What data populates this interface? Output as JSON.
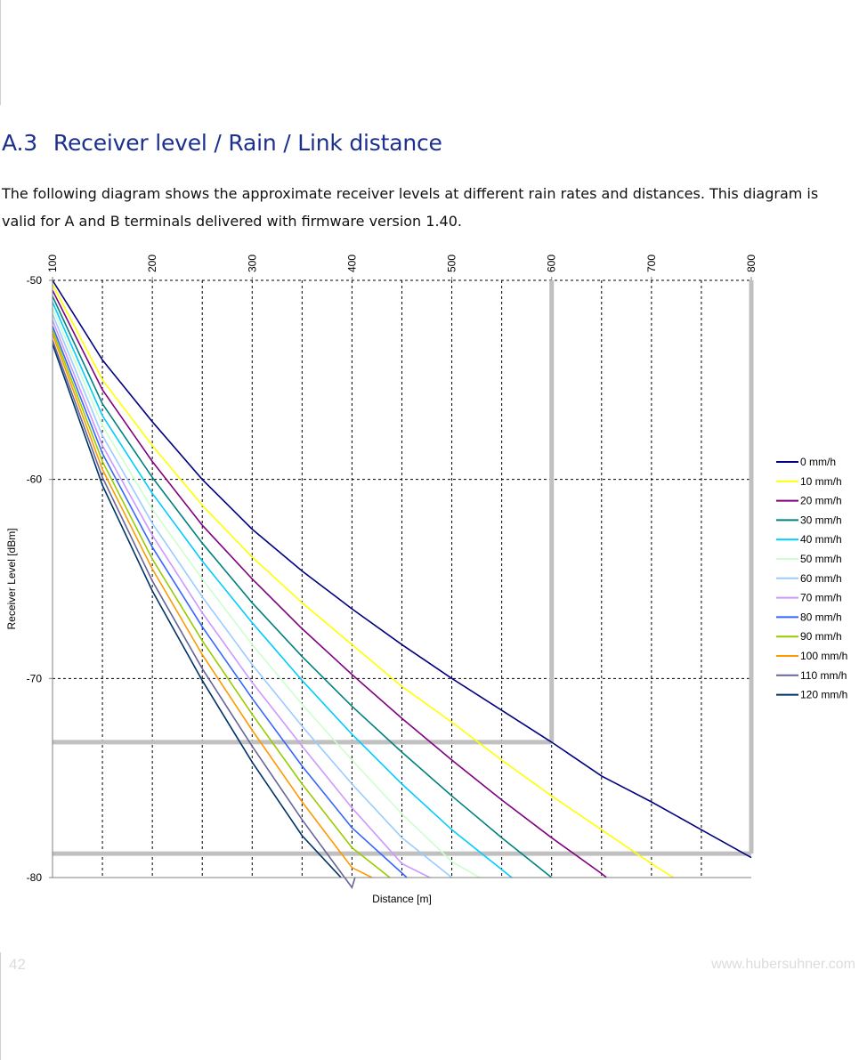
{
  "section": {
    "number": "A.3",
    "title": "Receiver level / Rain / Link distance",
    "intro": "The following diagram shows the approximate receiver levels at different rain rates and distances. This diagram is valid for A and B terminals delivered with firmware version 1.40."
  },
  "footer": {
    "page_number": "42",
    "website": "www.hubersuhner.com"
  },
  "chart_data": {
    "type": "line",
    "title": "",
    "xlabel": "Distance [m]",
    "ylabel": "Receiver Level [dBm]",
    "xlim": [
      100,
      800
    ],
    "ylim": [
      -80,
      -50
    ],
    "x_ticks": [
      {
        "value": 100,
        "label": "100"
      },
      {
        "value": 200,
        "label": "200"
      },
      {
        "value": 300,
        "label": "300"
      },
      {
        "value": 400,
        "label": "400"
      },
      {
        "value": 500,
        "label": "500"
      },
      {
        "value": 600,
        "label": "600"
      },
      {
        "value": 700,
        "label": "700"
      },
      {
        "value": 800,
        "label": "800"
      }
    ],
    "y_ticks": [
      {
        "value": -50,
        "label": "-50"
      },
      {
        "value": -60,
        "label": "-60"
      },
      {
        "value": -70,
        "label": "-70"
      },
      {
        "value": -80,
        "label": "-80"
      }
    ],
    "x_axis_position": "top",
    "grid": "dashed vertical every 50 m, dashed horizontal at each y tick",
    "legend_position": "right",
    "series": [
      {
        "name": "0 mm/h",
        "color": "#000080",
        "x": [
          100,
          150,
          200,
          250,
          300,
          350,
          400,
          450,
          500,
          550,
          600,
          650,
          700,
          750,
          800
        ],
        "y": [
          -50,
          -54,
          -57.1,
          -60,
          -62.5,
          -64.6,
          -66.5,
          -68.3,
          -70,
          -71.6,
          -73.2,
          -74.9,
          -76.2,
          -77.6,
          -79
        ]
      },
      {
        "name": "10 mm/h",
        "color": "#ffff00",
        "x": [
          100,
          150,
          200,
          250,
          300,
          350,
          400,
          450,
          500,
          550,
          600,
          650,
          700,
          722
        ],
        "y": [
          -50.2,
          -55,
          -58.3,
          -61.3,
          -63.9,
          -66.2,
          -68.3,
          -70.4,
          -72.2,
          -74.1,
          -75.9,
          -77.6,
          -79.3,
          -80
        ]
      },
      {
        "name": "20 mm/h",
        "color": "#800080",
        "x": [
          100,
          150,
          200,
          250,
          300,
          350,
          400,
          450,
          500,
          550,
          600,
          650,
          655
        ],
        "y": [
          -50.5,
          -55.5,
          -59.1,
          -62.3,
          -65,
          -67.5,
          -69.8,
          -72,
          -74.1,
          -76.1,
          -78,
          -79.8,
          -80
        ]
      },
      {
        "name": "30 mm/h",
        "color": "#008080",
        "x": [
          100,
          150,
          200,
          250,
          300,
          350,
          400,
          450,
          500,
          550,
          600
        ],
        "y": [
          -50.8,
          -56.2,
          -59.9,
          -63.2,
          -66.2,
          -68.9,
          -71.4,
          -73.7,
          -75.9,
          -78,
          -80
        ]
      },
      {
        "name": "40 mm/h",
        "color": "#00ccff",
        "x": [
          100,
          150,
          200,
          250,
          300,
          350,
          400,
          450,
          500,
          560
        ],
        "y": [
          -51.1,
          -56.8,
          -60.7,
          -64.1,
          -67.2,
          -70.1,
          -72.8,
          -75.3,
          -77.6,
          -80
        ]
      },
      {
        "name": "50 mm/h",
        "color": "#ccffcc",
        "x": [
          100,
          150,
          200,
          250,
          300,
          350,
          400,
          450,
          500,
          528
        ],
        "y": [
          -51.4,
          -57.3,
          -61.5,
          -65,
          -68.3,
          -71.3,
          -74.1,
          -76.8,
          -79.2,
          -80
        ]
      },
      {
        "name": "60 mm/h",
        "color": "#99ccff",
        "x": [
          100,
          150,
          200,
          250,
          300,
          350,
          400,
          450,
          500
        ],
        "y": [
          -51.7,
          -57.8,
          -62.2,
          -65.9,
          -69.3,
          -72.4,
          -75.3,
          -78,
          -80
        ]
      },
      {
        "name": "70 mm/h",
        "color": "#cc99ff",
        "x": [
          100,
          150,
          200,
          250,
          300,
          350,
          400,
          450,
          478
        ],
        "y": [
          -52,
          -58.3,
          -62.8,
          -66.7,
          -70.2,
          -73.4,
          -76.5,
          -79.3,
          -80
        ]
      },
      {
        "name": "80 mm/h",
        "color": "#3366ff",
        "x": [
          100,
          150,
          200,
          250,
          300,
          350,
          400,
          455
        ],
        "y": [
          -52.3,
          -58.7,
          -63.4,
          -67.4,
          -71,
          -74.4,
          -77.5,
          -80
        ]
      },
      {
        "name": "90 mm/h",
        "color": "#99cc00",
        "x": [
          100,
          150,
          200,
          250,
          300,
          350,
          400,
          438
        ],
        "y": [
          -52.5,
          -59.1,
          -64,
          -68.1,
          -71.8,
          -75.3,
          -78.5,
          -80
        ]
      },
      {
        "name": "100 mm/h",
        "color": "#ff9900",
        "x": [
          100,
          150,
          200,
          250,
          300,
          350,
          400,
          420
        ],
        "y": [
          -52.7,
          -59.5,
          -64.5,
          -68.8,
          -72.6,
          -76.2,
          -79.5,
          -80
        ]
      },
      {
        "name": "110 mm/h",
        "color": "#666699",
        "x": [
          100,
          150,
          200,
          250,
          300,
          350,
          400,
          403
        ],
        "y": [
          -53,
          -59.9,
          -65.1,
          -69.5,
          -73.4,
          -77.1,
          -80.5,
          -80
        ]
      },
      {
        "name": "120 mm/h",
        "color": "#003366",
        "x": [
          100,
          150,
          200,
          250,
          300,
          350,
          389
        ],
        "y": [
          -53.2,
          -60.3,
          -65.6,
          -70.1,
          -74.2,
          -77.9,
          -80
        ]
      }
    ],
    "annotations": [
      {
        "type": "reference-lines",
        "color": "#c0c0c0",
        "vertical_x": 600,
        "horizontal_y": -73.2
      },
      {
        "type": "reference-lines",
        "color": "#c0c0c0",
        "vertical_x": 800,
        "horizontal_y": -78.8
      }
    ]
  }
}
